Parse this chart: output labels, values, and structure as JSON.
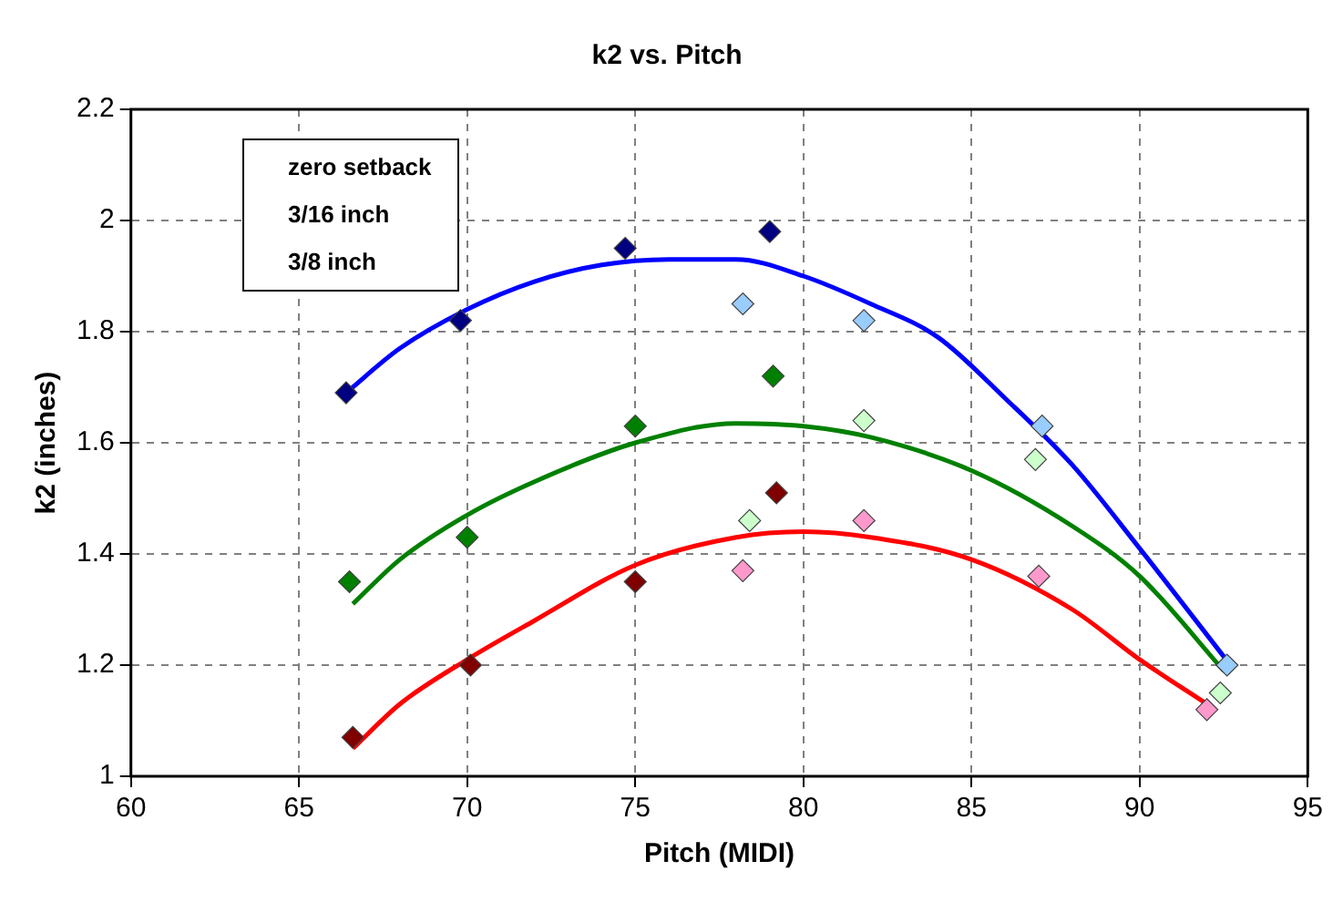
{
  "chart_data": {
    "type": "scatter",
    "title": "k2 vs. Pitch",
    "xlabel": "Pitch (MIDI)",
    "ylabel": "k2 (inches)",
    "xlim": [
      60,
      95
    ],
    "xticks": [
      60,
      65,
      70,
      75,
      80,
      85,
      90,
      95
    ],
    "ylim": [
      1,
      2.2
    ],
    "yticks": [
      1,
      1.2,
      1.4,
      1.6,
      1.8,
      2,
      2.2
    ],
    "grid": true,
    "marker": "diamond",
    "legend": false,
    "annotations": [
      "zero setback",
      "3/16 inch",
      "3/8 inch"
    ],
    "series": [
      {
        "type": "scatter",
        "color": "#000080",
        "x": [
          66.4,
          69.8,
          74.7,
          79.0
        ],
        "values": [
          1.69,
          1.82,
          1.95,
          1.98
        ]
      },
      {
        "type": "scatter",
        "color": "#99ccff",
        "x": [
          78.2,
          81.8,
          87.1,
          92.6
        ],
        "values": [
          1.85,
          1.82,
          1.63,
          1.2
        ]
      },
      {
        "type": "scatter",
        "color": "#008000",
        "x": [
          66.5,
          70.0,
          75.0,
          79.1
        ],
        "values": [
          1.35,
          1.43,
          1.63,
          1.72
        ]
      },
      {
        "type": "scatter",
        "color": "#ccffcc",
        "x": [
          78.4,
          81.8,
          86.9,
          92.4
        ],
        "values": [
          1.46,
          1.64,
          1.57,
          1.15
        ]
      },
      {
        "type": "scatter",
        "color": "#800000",
        "x": [
          66.6,
          70.1,
          75.0,
          79.2
        ],
        "values": [
          1.07,
          1.2,
          1.35,
          1.51
        ]
      },
      {
        "type": "scatter",
        "color": "#ff99cc",
        "x": [
          78.2,
          81.8,
          87.0,
          92.0
        ],
        "values": [
          1.37,
          1.46,
          1.36,
          1.12
        ]
      },
      {
        "type": "line",
        "marker": "none",
        "color": "#0000ff",
        "x": [
          66.4,
          68,
          70,
          72,
          74,
          76,
          78,
          80,
          82,
          84,
          86,
          88,
          90,
          92.7
        ],
        "values": [
          1.69,
          1.77,
          1.84,
          1.89,
          1.92,
          1.93,
          1.93,
          1.9,
          1.85,
          1.79,
          1.68,
          1.56,
          1.41,
          1.2
        ]
      },
      {
        "type": "line",
        "marker": "none",
        "color": "#008000",
        "x": [
          66.6,
          68,
          70,
          72,
          75,
          78,
          80,
          82,
          85,
          88,
          90,
          92.5
        ],
        "values": [
          1.31,
          1.39,
          1.47,
          1.53,
          1.6,
          1.635,
          1.63,
          1.61,
          1.55,
          1.45,
          1.36,
          1.19
        ]
      },
      {
        "type": "line",
        "marker": "none",
        "color": "#ff0000",
        "x": [
          66.6,
          68,
          70,
          72,
          75,
          78,
          80,
          82,
          85,
          88,
          90,
          92
        ],
        "values": [
          1.05,
          1.13,
          1.21,
          1.28,
          1.38,
          1.43,
          1.44,
          1.43,
          1.39,
          1.3,
          1.21,
          1.13
        ]
      }
    ]
  }
}
